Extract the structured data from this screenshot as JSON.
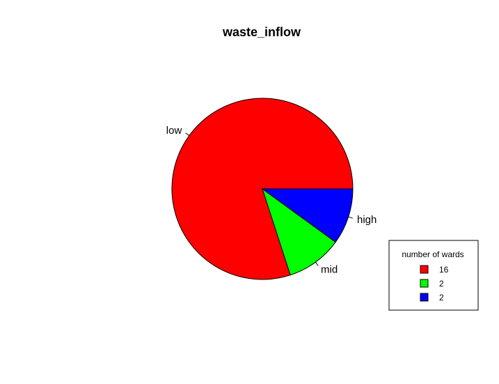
{
  "chart_data": {
    "type": "pie",
    "title": "waste_inflow",
    "categories": [
      "low",
      "mid",
      "high"
    ],
    "values": [
      16,
      2,
      2
    ],
    "colors": [
      "#ff0000",
      "#00ff00",
      "#0000ff"
    ],
    "start_angle_deg": 0,
    "direction": "counterclockwise",
    "legend": {
      "title": "number of wards",
      "entries": [
        "16",
        "2",
        "2"
      ],
      "position": "bottom-right"
    }
  }
}
